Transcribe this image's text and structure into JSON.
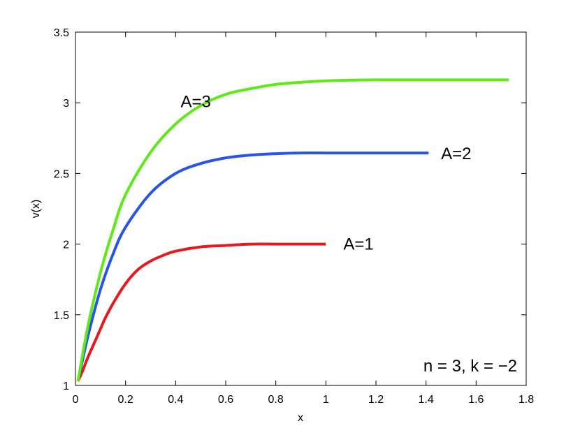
{
  "chart_data": {
    "type": "line",
    "xlabel": "x",
    "ylabel": "v(x)",
    "xlim": [
      0,
      1.8
    ],
    "ylim": [
      1,
      3.5
    ],
    "xticks": [
      "0",
      "0.2",
      "0.4",
      "0.6",
      "0.8",
      "1",
      "1.2",
      "1.4",
      "1.6",
      "1.8"
    ],
    "yticks": [
      "1",
      "1.5",
      "2",
      "2.5",
      "3",
      "3.5"
    ],
    "grid": false,
    "annotation": "n = 3, k = −2",
    "series": [
      {
        "name": "A=1",
        "color": "#e8191d",
        "x": [
          0.01,
          0.03,
          0.05,
          0.08,
          0.1,
          0.12,
          0.15,
          0.2,
          0.25,
          0.3,
          0.35,
          0.4,
          0.5,
          0.6,
          0.7,
          0.8,
          0.9,
          1.0
        ],
        "y": [
          1.03,
          1.11,
          1.2,
          1.32,
          1.4,
          1.48,
          1.58,
          1.72,
          1.82,
          1.88,
          1.92,
          1.95,
          1.98,
          1.99,
          2.0,
          2.0,
          2.0,
          2.0
        ]
      },
      {
        "name": "A=2",
        "color": "#2855e8",
        "x": [
          0.01,
          0.05,
          0.1,
          0.15,
          0.2,
          0.3,
          0.4,
          0.5,
          0.6,
          0.7,
          0.8,
          0.9,
          1.0,
          1.1,
          1.2,
          1.3,
          1.41
        ],
        "y": [
          1.03,
          1.35,
          1.68,
          1.93,
          2.12,
          2.36,
          2.5,
          2.57,
          2.61,
          2.63,
          2.64,
          2.645,
          2.645,
          2.645,
          2.645,
          2.645,
          2.645
        ]
      },
      {
        "name": "A=3",
        "color": "#5fe81a",
        "x": [
          0.01,
          0.05,
          0.1,
          0.15,
          0.2,
          0.3,
          0.4,
          0.5,
          0.6,
          0.7,
          0.8,
          0.9,
          1.0,
          1.1,
          1.2,
          1.4,
          1.6,
          1.73
        ],
        "y": [
          1.03,
          1.42,
          1.8,
          2.1,
          2.35,
          2.65,
          2.85,
          2.98,
          3.06,
          3.1,
          3.13,
          3.145,
          3.155,
          3.16,
          3.162,
          3.162,
          3.162,
          3.162
        ]
      }
    ],
    "labels": [
      {
        "text": "A=3",
        "x": 0.42,
        "y": 2.97
      },
      {
        "text": "A=2",
        "x": 1.46,
        "y": 2.6
      },
      {
        "text": "A=1",
        "x": 1.07,
        "y": 1.96
      }
    ]
  }
}
